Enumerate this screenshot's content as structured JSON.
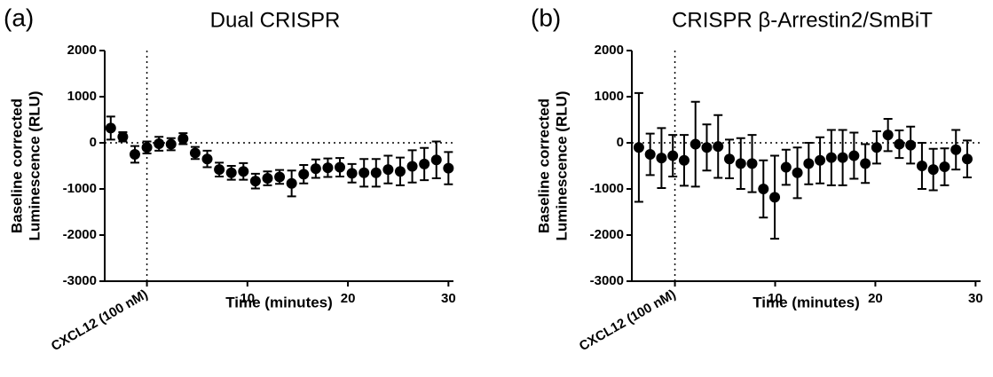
{
  "chart_data": [
    {
      "type": "scatter",
      "panel": "(a)",
      "title": "Dual CRISPR",
      "x_label": "Time (minutes)",
      "y_label": [
        "Baseline corrected",
        "Luminescence (RLU)"
      ],
      "xlim": [
        -4.2,
        30.5
      ],
      "ylim": [
        -3000,
        2000
      ],
      "xticks": [
        {
          "value": 0,
          "label": "CXCL12 (100 nM)"
        },
        10,
        20,
        30
      ],
      "yticks": [
        -3000,
        -2000,
        -1000,
        0,
        1000,
        2000
      ],
      "series": [
        {
          "color": "#000000",
          "x": [
            -3.6,
            -2.4,
            -1.2,
            0,
            1.2,
            2.4,
            3.6,
            4.8,
            6.0,
            7.2,
            8.4,
            9.6,
            10.8,
            12.0,
            13.2,
            14.4,
            15.6,
            16.8,
            18.0,
            19.2,
            20.4,
            21.6,
            22.8,
            24.0,
            25.2,
            26.4,
            27.6,
            28.8,
            30.0
          ],
          "values": [
            320,
            130,
            -250,
            -100,
            -20,
            -30,
            90,
            -220,
            -350,
            -580,
            -650,
            -620,
            -830,
            -770,
            -740,
            -880,
            -680,
            -560,
            -540,
            -530,
            -660,
            -650,
            -650,
            -580,
            -620,
            -510,
            -460,
            -370,
            -550
          ],
          "errors": [
            250,
            100,
            180,
            130,
            150,
            130,
            120,
            130,
            180,
            150,
            150,
            180,
            160,
            150,
            150,
            280,
            200,
            200,
            200,
            200,
            200,
            300,
            300,
            300,
            300,
            350,
            350,
            400,
            350
          ]
        }
      ]
    },
    {
      "type": "scatter",
      "panel": "(b)",
      "title": "CRISPR β-Arrestin2/SmBiT",
      "x_label": "Time (minutes)",
      "y_label": [
        "Baseline corrected",
        "Luminescence (RLU)"
      ],
      "xlim": [
        -4.3,
        30.5
      ],
      "ylim": [
        -3000,
        2000
      ],
      "xticks": [
        {
          "value": 0,
          "label": "CXCL12 (100 nM)"
        },
        10,
        20,
        30
      ],
      "yticks": [
        -3000,
        -2000,
        -1000,
        0,
        1000,
        2000
      ],
      "series": [
        {
          "color": "#000000",
          "x": [
            -3.6,
            -2.47,
            -1.34,
            -0.21,
            0.92,
            2.05,
            3.18,
            4.31,
            5.44,
            6.57,
            7.7,
            8.83,
            9.96,
            11.09,
            12.22,
            13.35,
            14.48,
            15.61,
            16.74,
            17.87,
            19.0,
            20.13,
            21.26,
            22.39,
            23.52,
            24.65,
            25.78,
            26.91,
            28.04,
            29.17
          ],
          "values": [
            -100,
            -250,
            -330,
            -280,
            -380,
            -30,
            -100,
            -80,
            -350,
            -450,
            -450,
            -1000,
            -1180,
            -530,
            -650,
            -450,
            -380,
            -320,
            -320,
            -280,
            -450,
            -100,
            170,
            -30,
            -50,
            -500,
            -580,
            -520,
            -150,
            -350
          ],
          "errors": [
            1180,
            450,
            650,
            450,
            550,
            920,
            500,
            680,
            420,
            550,
            620,
            620,
            900,
            380,
            550,
            450,
            500,
            600,
            600,
            500,
            420,
            350,
            350,
            300,
            400,
            500,
            450,
            400,
            430,
            400
          ]
        }
      ]
    }
  ]
}
